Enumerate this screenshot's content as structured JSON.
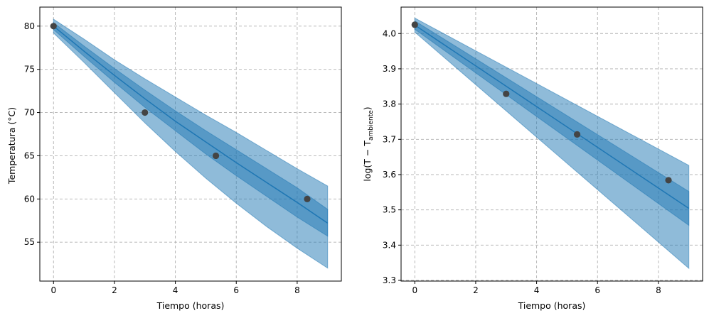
{
  "chart_data": [
    {
      "type": "line",
      "xlabel": "Tiempo (horas)",
      "ylabel": "Temperatura (°C)",
      "xlim": [
        -0.45,
        9.45
      ],
      "ylim": [
        50.5,
        82.2
      ],
      "xticks": [
        0,
        2,
        4,
        6,
        8
      ],
      "yticks": [
        55,
        60,
        65,
        70,
        75,
        80
      ],
      "grid": true,
      "line_color": "#1f77b4",
      "band_color": "#1f77b4",
      "point_color": "#444444",
      "line": {
        "x": [
          0,
          1,
          2,
          3,
          4,
          5,
          6,
          7,
          8,
          9
        ],
        "y": [
          80.0,
          77.1,
          74.3,
          71.6,
          69.0,
          66.6,
          64.2,
          61.9,
          59.6,
          57.2
        ]
      },
      "inner_band": {
        "x": [
          0,
          1,
          2,
          3,
          4,
          5,
          6,
          7,
          8,
          9
        ],
        "lower": [
          79.6,
          76.5,
          73.5,
          70.6,
          67.9,
          65.2,
          62.7,
          60.3,
          57.9,
          55.7
        ],
        "upper": [
          80.4,
          77.7,
          75.1,
          72.6,
          70.2,
          67.9,
          65.7,
          63.5,
          61.3,
          58.8
        ]
      },
      "outer_band": {
        "x": [
          0,
          1,
          2,
          3,
          4,
          5,
          6,
          7,
          8,
          9
        ],
        "lower": [
          79.2,
          75.8,
          72.3,
          68.8,
          65.5,
          62.4,
          59.5,
          56.8,
          54.3,
          52.0
        ],
        "upper": [
          80.8,
          78.5,
          76.1,
          73.9,
          71.8,
          69.7,
          67.7,
          65.6,
          63.5,
          61.5
        ]
      },
      "points": {
        "x": [
          0,
          3,
          5.33,
          8.33
        ],
        "y": [
          80,
          70,
          65,
          60
        ]
      }
    },
    {
      "type": "line",
      "xlabel": "Tiempo (horas)",
      "ylabel": "log(T − T",
      "ylabel_sub": "ambiente",
      "ylabel_end": ")",
      "xlim": [
        -0.45,
        9.45
      ],
      "ylim": [
        3.298,
        4.075
      ],
      "xticks": [
        0,
        2,
        4,
        6,
        8
      ],
      "yticks": [
        3.3,
        3.4,
        3.5,
        3.6,
        3.7,
        3.8,
        3.9,
        4.0
      ],
      "ytick_labels": [
        "3.3",
        "3.4",
        "3.5",
        "3.6",
        "3.7",
        "3.8",
        "3.9",
        "4.0"
      ],
      "grid": true,
      "line_color": "#1f77b4",
      "band_color": "#1f77b4",
      "point_color": "#444444",
      "line": {
        "x": [
          0,
          9
        ],
        "y": [
          4.024,
          3.504
        ]
      },
      "inner_band": {
        "x": [
          0,
          9
        ],
        "lower": [
          4.012,
          3.456
        ],
        "upper": [
          4.036,
          3.552
        ]
      },
      "outer_band": {
        "x": [
          0,
          9
        ],
        "lower": [
          4.004,
          3.334
        ],
        "upper": [
          4.044,
          3.626
        ]
      },
      "points": {
        "x": [
          0,
          3,
          5.33,
          8.33
        ],
        "y": [
          4.025,
          3.829,
          3.714,
          3.584
        ]
      }
    }
  ]
}
